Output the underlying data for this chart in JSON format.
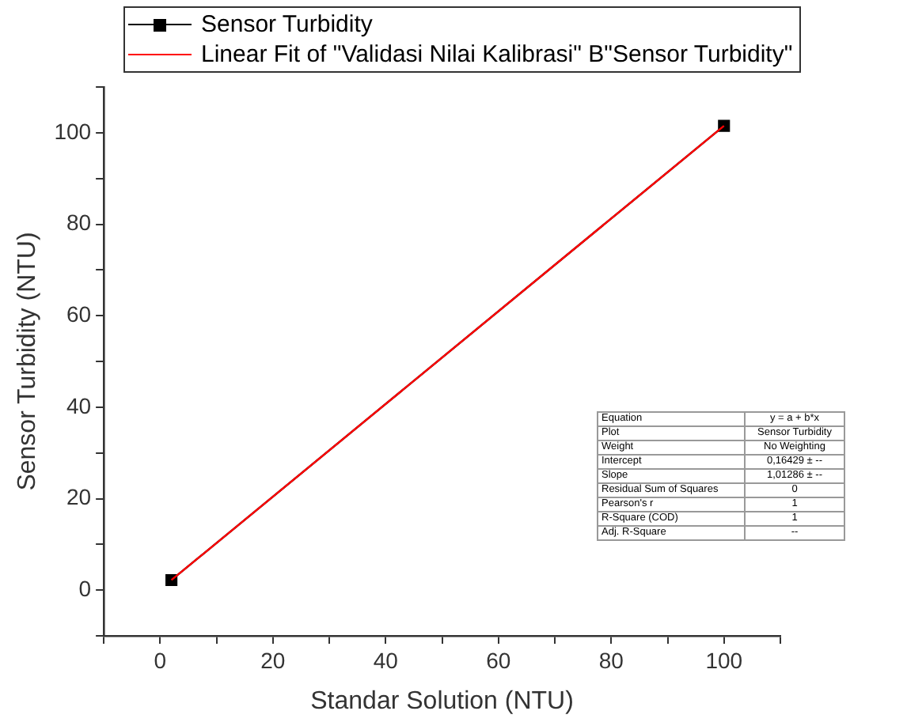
{
  "chart_data": {
    "type": "line",
    "xlabel": "Standar Solution (NTU)",
    "ylabel": "Sensor Turbidity (NTU)",
    "xlim": [
      -10,
      110
    ],
    "ylim": [
      -10,
      110
    ],
    "xticks": [
      {
        "value": -10,
        "label": null
      },
      0,
      {
        "value": 10,
        "label": null
      },
      20,
      {
        "value": 30,
        "label": null
      },
      40,
      {
        "value": 50,
        "label": null
      },
      60,
      {
        "value": 70,
        "label": null
      },
      80,
      {
        "value": 90,
        "label": null
      },
      100,
      {
        "value": 110,
        "label": null
      }
    ],
    "yticks": [
      {
        "value": -10,
        "label": null
      },
      0,
      {
        "value": 10,
        "label": null
      },
      20,
      {
        "value": 30,
        "label": null
      },
      40,
      {
        "value": 50,
        "label": null
      },
      60,
      {
        "value": 70,
        "label": null
      },
      80,
      {
        "value": 90,
        "label": null
      },
      100,
      {
        "value": 110,
        "label": null
      }
    ],
    "grid": false,
    "legend": "top",
    "x": [
      2,
      100
    ],
    "series": [
      {
        "name": "Sensor Turbidity",
        "type": "line",
        "color": "#000000",
        "marker": "square",
        "values": [
          2.2,
          101.5
        ]
      },
      {
        "name": "Linear Fit of \"Validasi Nilai Kalibrasi\" B\"Sensor Turbidity\"",
        "type": "line",
        "color": "#ff0000",
        "marker": "none",
        "values": [
          2.2,
          101.5
        ]
      }
    ],
    "annotations": [
      "Equation",
      "y = a + b*x",
      "Plot",
      "Sensor Turbidity",
      "Weight",
      "No Weighting",
      "Intercept",
      "0,16429 ± --",
      "Slope",
      "1,01286 ± --",
      "Residual Sum of Squares",
      "0",
      "Pearson's r",
      "1",
      "R-Square (COD)",
      "1",
      "Adj. R-Square",
      "--"
    ]
  }
}
